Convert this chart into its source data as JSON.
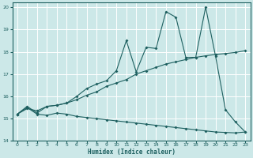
{
  "xlabel": "Humidex (Indice chaleur)",
  "xlim": [
    -0.5,
    23.5
  ],
  "ylim": [
    14,
    20.2
  ],
  "xticks": [
    0,
    1,
    2,
    3,
    4,
    5,
    6,
    7,
    8,
    9,
    10,
    11,
    12,
    13,
    14,
    15,
    16,
    17,
    18,
    19,
    20,
    21,
    22,
    23
  ],
  "yticks": [
    14,
    15,
    16,
    17,
    18,
    19,
    20
  ],
  "bg_color": "#cce8e8",
  "line_color": "#1e6060",
  "grid_color": "#ffffff",
  "series1_x": [
    0,
    1,
    2,
    3,
    4,
    5,
    6,
    7,
    8,
    9,
    10,
    11,
    12,
    13,
    14,
    15,
    16,
    17,
    18,
    19,
    20,
    21,
    22,
    23
  ],
  "series1_y": [
    15.2,
    15.5,
    15.2,
    15.15,
    15.25,
    15.2,
    15.1,
    15.05,
    15.0,
    14.95,
    14.9,
    14.85,
    14.8,
    14.75,
    14.7,
    14.65,
    14.6,
    14.55,
    14.5,
    14.45,
    14.4,
    14.38,
    14.36,
    14.4
  ],
  "series2_x": [
    0,
    1,
    2,
    3,
    4,
    5,
    6,
    7,
    8,
    9,
    10,
    11,
    12,
    13,
    14,
    15,
    16,
    17,
    18,
    19,
    20,
    21,
    22,
    23
  ],
  "series2_y": [
    15.2,
    15.45,
    15.35,
    15.55,
    15.6,
    15.7,
    15.85,
    16.05,
    16.2,
    16.45,
    16.6,
    16.75,
    17.0,
    17.15,
    17.3,
    17.45,
    17.55,
    17.65,
    17.75,
    17.82,
    17.88,
    17.92,
    17.97,
    18.05
  ],
  "series3_x": [
    0,
    1,
    2,
    3,
    4,
    5,
    6,
    7,
    8,
    9,
    10,
    11,
    12,
    13,
    14,
    15,
    16,
    17,
    18,
    19,
    20,
    21,
    22,
    23
  ],
  "series3_y": [
    15.2,
    15.55,
    15.25,
    15.55,
    15.6,
    15.7,
    16.0,
    16.35,
    16.55,
    16.7,
    17.15,
    18.5,
    17.1,
    18.2,
    18.15,
    19.8,
    19.55,
    17.75,
    17.75,
    20.0,
    17.8,
    15.4,
    14.85,
    14.4
  ]
}
